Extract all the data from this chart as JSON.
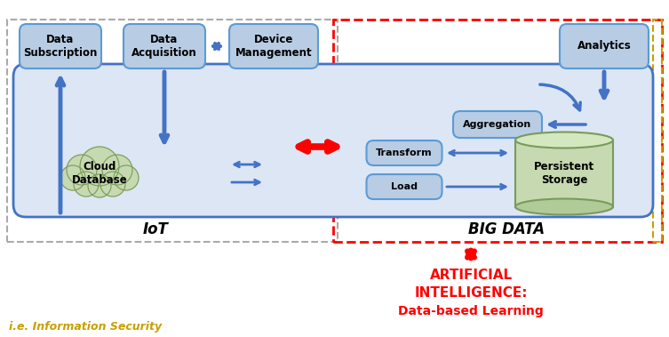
{
  "bg_color": "#ffffff",
  "node_fill": "#b8cce4",
  "node_stroke": "#4472c4",
  "inner_fill": "#dce6f5",
  "inner_stroke": "#4472c4",
  "cloud_fill": "#c6d9b0",
  "cloud_stroke": "#7a9a5c",
  "storage_fill": "#c6d9b0",
  "storage_stroke": "#7a9a5c",
  "arrow_blue": "#4472c4",
  "arrow_red": "#ff0000",
  "outer_iot_stroke": "#999999",
  "outer_bd_stroke": "#ff0000",
  "outer_right_stroke": "#c8a000",
  "info_security_color": "#c8a000",
  "ai_color": "#ff0000",
  "iot_label": "IoT",
  "big_data_label": "BIG DATA",
  "ai_label1": "ARTIFICIAL",
  "ai_label2": "INTELLIGENCE:",
  "ai_label3": "Data-based Learning",
  "info_security_label": "i.e. Information Security"
}
